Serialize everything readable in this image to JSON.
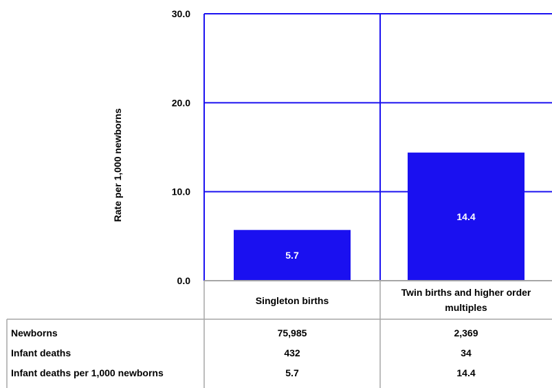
{
  "chart_data": {
    "type": "bar",
    "categories": [
      "Singleton births",
      [
        "Twin births and higher order",
        "multiples"
      ]
    ],
    "values": [
      5.7,
      14.4
    ],
    "value_labels": [
      "5.7",
      "14.4"
    ],
    "ylabel": "Rate per 1,000 newborns",
    "ylim": [
      0,
      30
    ],
    "yticks": [
      "0.0",
      "10.0",
      "20.0",
      "30.0"
    ],
    "ytick_values": [
      0,
      10,
      20,
      30
    ],
    "grid": true,
    "bar_color": "#1a10f0",
    "grid_color": "#1a10f0",
    "table": {
      "rows": [
        {
          "label": "Newborns",
          "values": [
            "75,985",
            "2,369"
          ]
        },
        {
          "label": "Infant deaths",
          "values": [
            "432",
            "34"
          ]
        },
        {
          "label": "Infant deaths per  1,000 newborns",
          "values": [
            "5.7",
            "14.4"
          ]
        }
      ]
    }
  }
}
